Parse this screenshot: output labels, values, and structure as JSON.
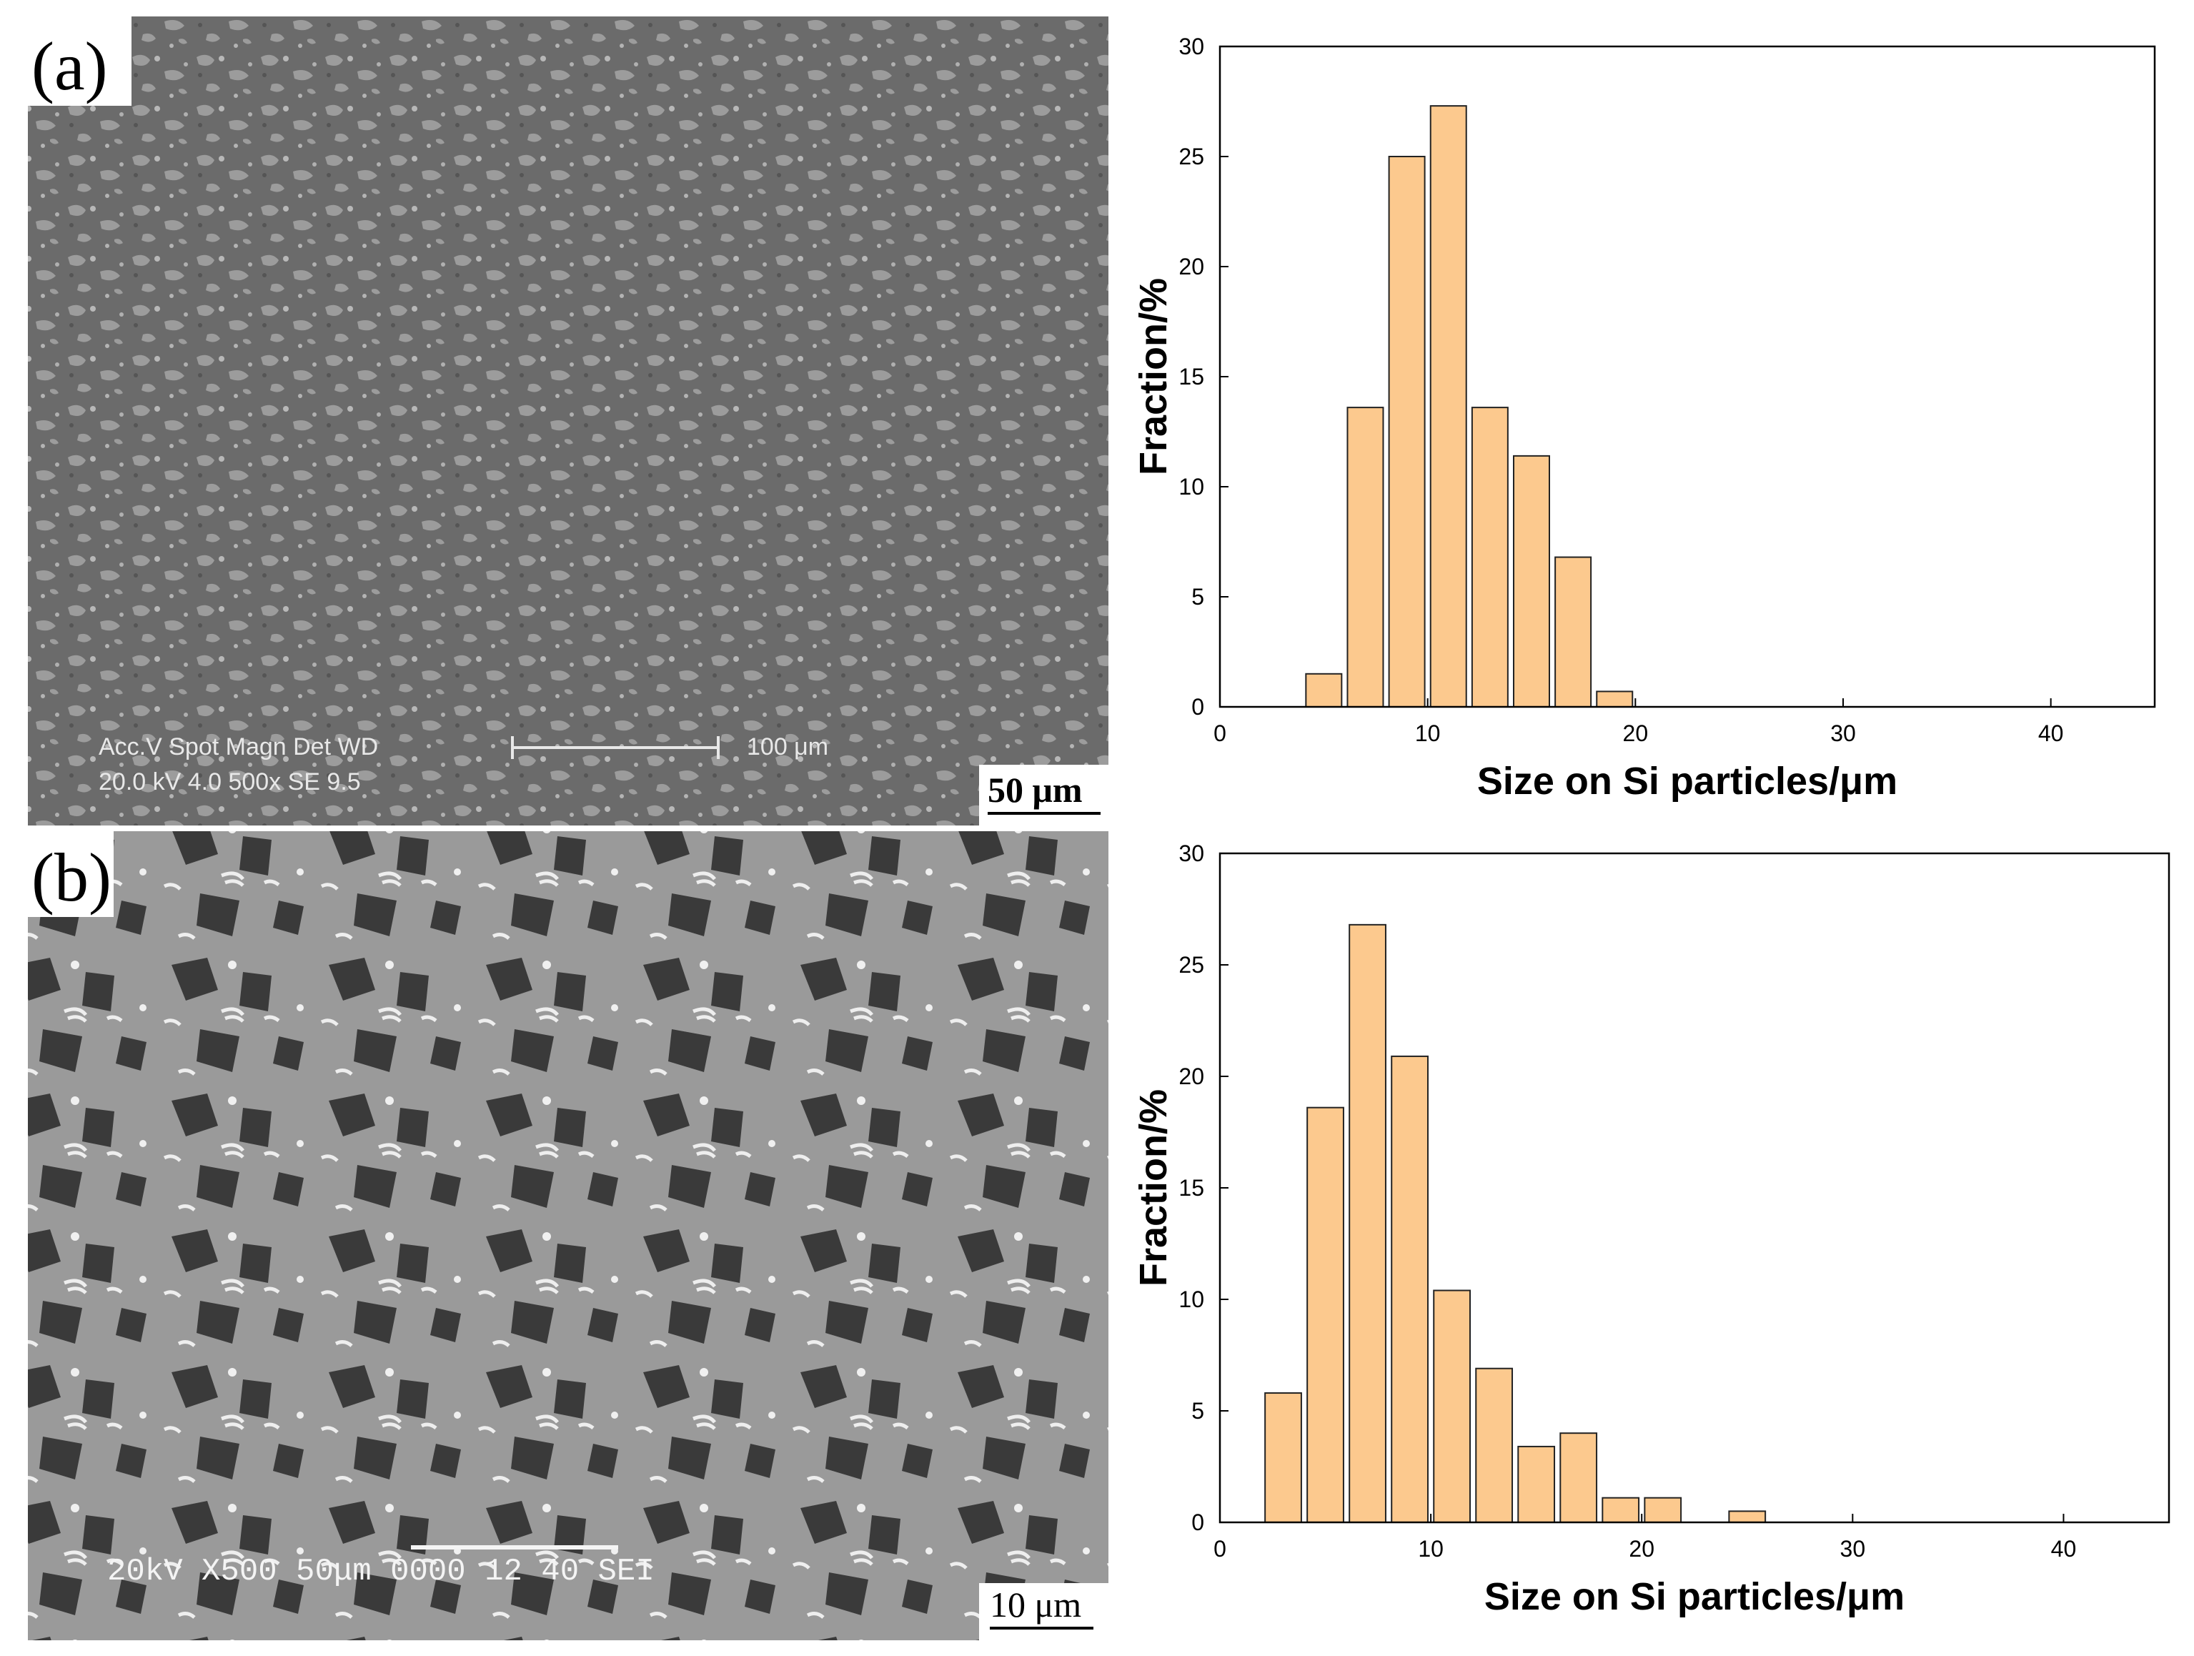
{
  "panels": [
    {
      "label": "(a)",
      "scale_bar": "50 μm",
      "info_line1": "Acc.V   Spot Magn    Det  WD",
      "info_line2": "20.0 kV 4.0   500x      SE   9.5",
      "info_scale": "100 μm"
    },
    {
      "label": "(b)",
      "scale_bar": "10 μm",
      "info_line1": "20kV    X500   50μm  0000  12 40  SEI"
    }
  ],
  "chart_data": [
    {
      "type": "bar",
      "xlabel": "Size on Si particles/μm",
      "ylabel": "Fraction/%",
      "x": [
        5,
        7,
        9,
        11,
        13,
        15,
        17,
        19
      ],
      "values": [
        1.5,
        13.6,
        25.0,
        27.3,
        13.6,
        11.4,
        6.8,
        0.7
      ],
      "color": "#fcc98e",
      "xlim": [
        0,
        45
      ],
      "ylim": [
        0,
        30
      ],
      "xticks": [
        0,
        10,
        20,
        30,
        40
      ],
      "yticks": [
        0,
        5,
        10,
        15,
        20,
        25,
        30
      ]
    },
    {
      "type": "bar",
      "xlabel": "Size on Si particles/μm",
      "ylabel": "Fraction/%",
      "x": [
        3,
        5,
        7,
        9,
        11,
        13,
        15,
        17,
        19,
        21,
        25
      ],
      "values": [
        5.8,
        18.6,
        26.8,
        20.9,
        10.4,
        6.9,
        3.4,
        4.0,
        1.1,
        1.1,
        0.5
      ],
      "color": "#fcc98e",
      "xlim": [
        0,
        45
      ],
      "ylim": [
        0,
        30
      ],
      "xticks": [
        0,
        10,
        20,
        30,
        40
      ],
      "yticks": [
        0,
        5,
        10,
        15,
        20,
        25,
        30
      ]
    }
  ]
}
